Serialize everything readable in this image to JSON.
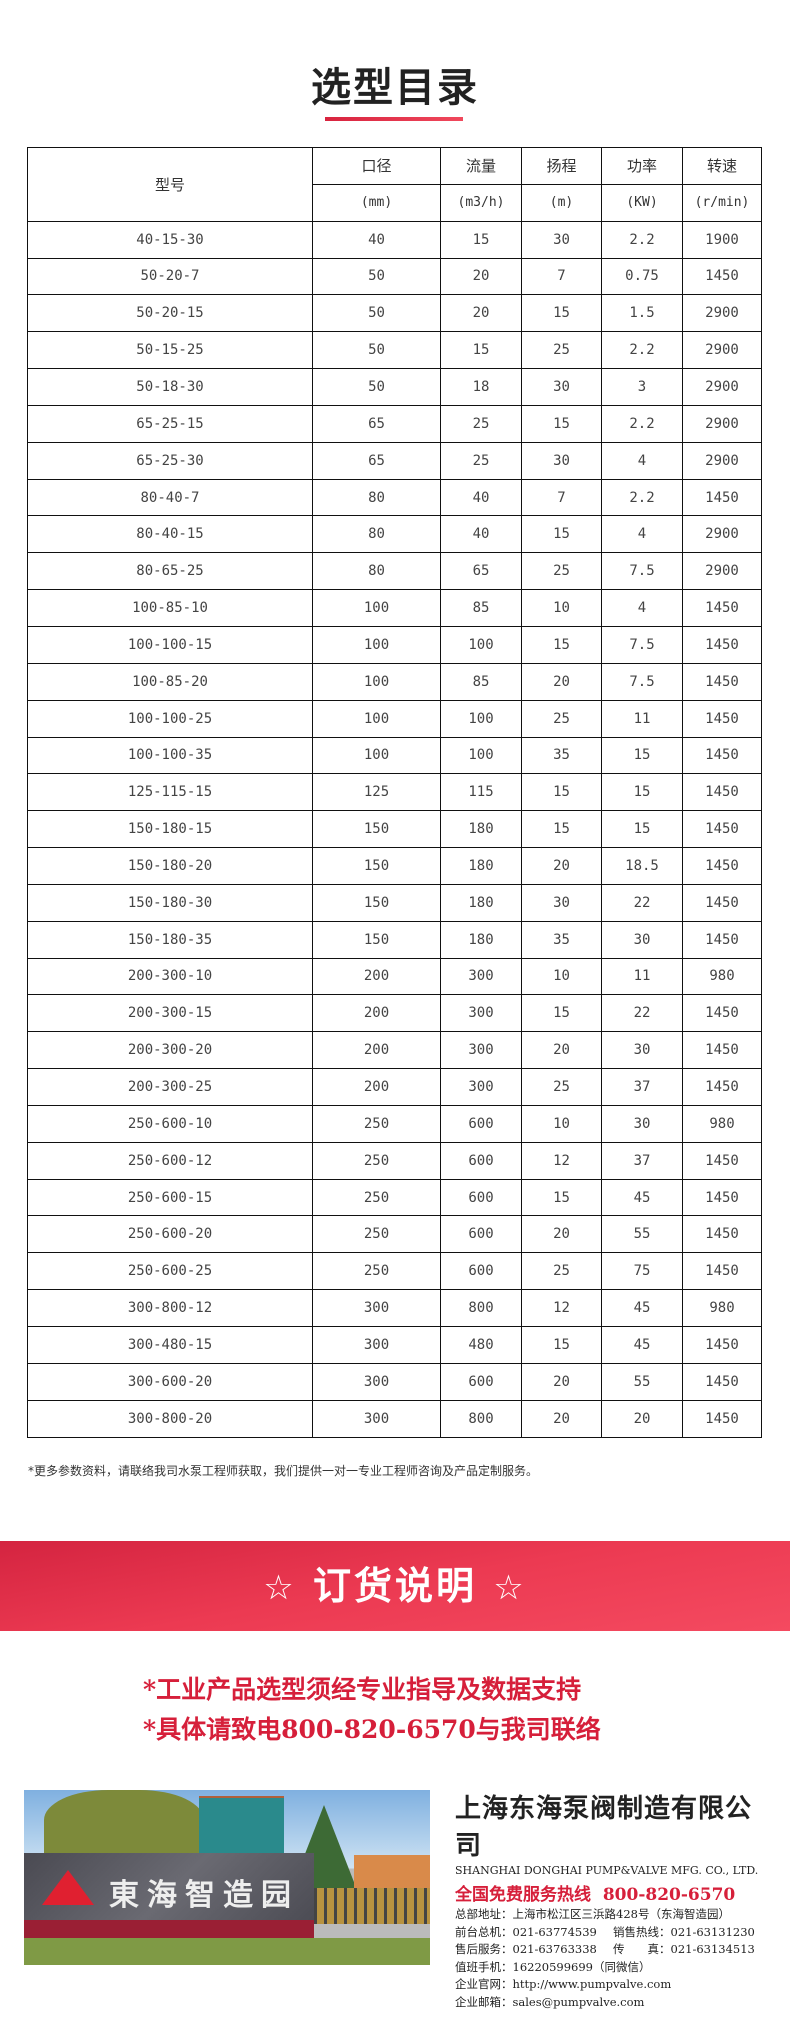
{
  "title": "选型目录",
  "table": {
    "headers": {
      "model": "型号",
      "cols": [
        "口径",
        "流量",
        "扬程",
        "功率",
        "转速"
      ],
      "units": [
        "(mm)",
        "(m3/h)",
        "(m)",
        "(KW)",
        "(r/min)"
      ]
    },
    "rows": [
      [
        "40-15-30",
        "40",
        "15",
        "30",
        "2.2",
        "1900"
      ],
      [
        "50-20-7",
        "50",
        "20",
        "7",
        "0.75",
        "1450"
      ],
      [
        "50-20-15",
        "50",
        "20",
        "15",
        "1.5",
        "2900"
      ],
      [
        "50-15-25",
        "50",
        "15",
        "25",
        "2.2",
        "2900"
      ],
      [
        "50-18-30",
        "50",
        "18",
        "30",
        "3",
        "2900"
      ],
      [
        "65-25-15",
        "65",
        "25",
        "15",
        "2.2",
        "2900"
      ],
      [
        "65-25-30",
        "65",
        "25",
        "30",
        "4",
        "2900"
      ],
      [
        "80-40-7",
        "80",
        "40",
        "7",
        "2.2",
        "1450"
      ],
      [
        "80-40-15",
        "80",
        "40",
        "15",
        "4",
        "2900"
      ],
      [
        "80-65-25",
        "80",
        "65",
        "25",
        "7.5",
        "2900"
      ],
      [
        "100-85-10",
        "100",
        "85",
        "10",
        "4",
        "1450"
      ],
      [
        "100-100-15",
        "100",
        "100",
        "15",
        "7.5",
        "1450"
      ],
      [
        "100-85-20",
        "100",
        "85",
        "20",
        "7.5",
        "1450"
      ],
      [
        "100-100-25",
        "100",
        "100",
        "25",
        "11",
        "1450"
      ],
      [
        "100-100-35",
        "100",
        "100",
        "35",
        "15",
        "1450"
      ],
      [
        "125-115-15",
        "125",
        "115",
        "15",
        "15",
        "1450"
      ],
      [
        "150-180-15",
        "150",
        "180",
        "15",
        "15",
        "1450"
      ],
      [
        "150-180-20",
        "150",
        "180",
        "20",
        "18.5",
        "1450"
      ],
      [
        "150-180-30",
        "150",
        "180",
        "30",
        "22",
        "1450"
      ],
      [
        "150-180-35",
        "150",
        "180",
        "35",
        "30",
        "1450"
      ],
      [
        "200-300-10",
        "200",
        "300",
        "10",
        "11",
        "980"
      ],
      [
        "200-300-15",
        "200",
        "300",
        "15",
        "22",
        "1450"
      ],
      [
        "200-300-20",
        "200",
        "300",
        "20",
        "30",
        "1450"
      ],
      [
        "200-300-25",
        "200",
        "300",
        "25",
        "37",
        "1450"
      ],
      [
        "250-600-10",
        "250",
        "600",
        "10",
        "30",
        "980"
      ],
      [
        "250-600-12",
        "250",
        "600",
        "12",
        "37",
        "1450"
      ],
      [
        "250-600-15",
        "250",
        "600",
        "15",
        "45",
        "1450"
      ],
      [
        "250-600-20",
        "250",
        "600",
        "20",
        "55",
        "1450"
      ],
      [
        "250-600-25",
        "250",
        "600",
        "25",
        "75",
        "1450"
      ],
      [
        "300-800-12",
        "300",
        "800",
        "12",
        "45",
        "980"
      ],
      [
        "300-480-15",
        "300",
        "480",
        "15",
        "45",
        "1450"
      ],
      [
        "300-600-20",
        "300",
        "600",
        "20",
        "55",
        "1450"
      ],
      [
        "300-800-20",
        "300",
        "800",
        "20",
        "20",
        "1450"
      ]
    ]
  },
  "note": "*更多参数资料，请联络我司水泵工程师获取，我们提供一对一专业工程师咨询及产品定制服务。",
  "banner": {
    "star": "☆",
    "title": "订货说明"
  },
  "lines": [
    "*工业产品选型须经专业指导及数据支持",
    "*具体请致电800-820-6570与我司联络"
  ],
  "photo": {
    "sign": "東海智造园"
  },
  "company": {
    "name_cn": "上海东海泵阀制造有限公司",
    "name_en": "SHANGHAI DONGHAI PUMP&VALVE MFG. CO., LTD.",
    "hotline_label": "全国免费服务热线",
    "hotline": "800-820-6570",
    "address": "总部地址：上海市松江区三浜路428号（东海智造园）",
    "front_desk": "前台总机：021-63774539",
    "sales": "销售热线：021-63131230",
    "after_sales": "售后服务：021-63763338",
    "fax": "传　　真：021-63134513",
    "mobile": "值班手机：16220599699（同微信）",
    "website": "企业官网：http://www.pumpvalve.com",
    "email": "企业邮箱：sales@pumpvalve.com"
  },
  "colors": {
    "accent": "#d61f3a"
  }
}
